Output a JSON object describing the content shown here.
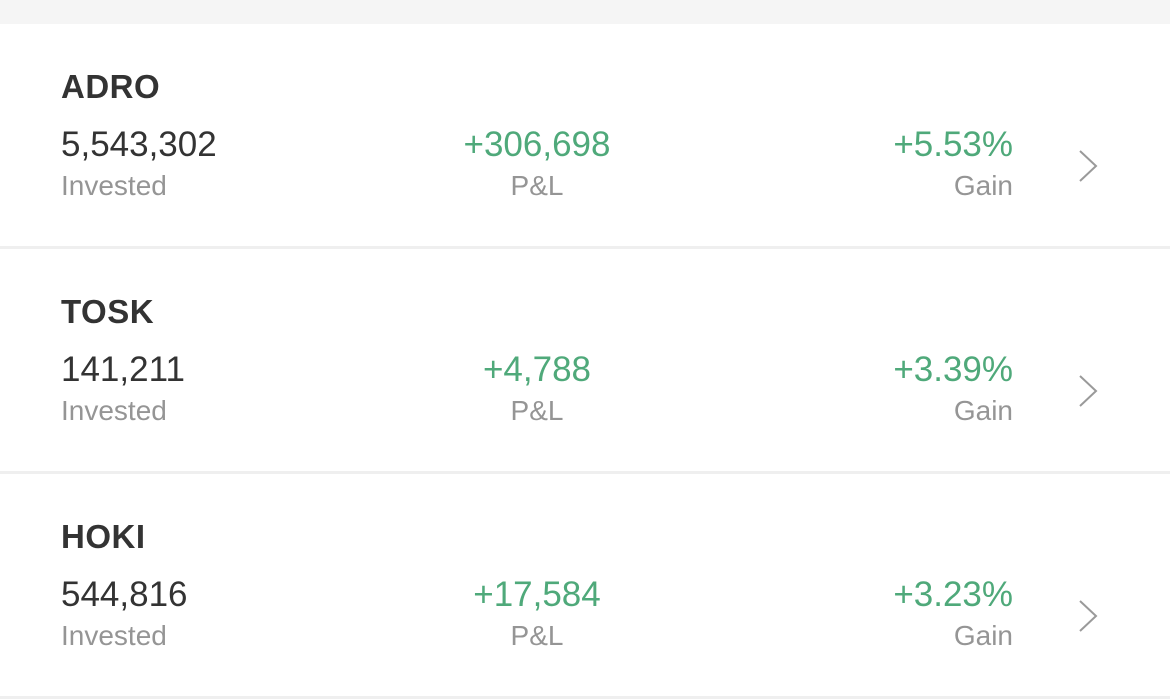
{
  "colors": {
    "positive": "#4fa97a",
    "text": "#333333",
    "label": "#959595"
  },
  "labels": {
    "invested": "Invested",
    "pnl": "P&L",
    "gain": "Gain"
  },
  "holdings": [
    {
      "ticker": "ADRO",
      "invested": "5,543,302",
      "pnl": "+306,698",
      "gain": "+5.53%"
    },
    {
      "ticker": "TOSK",
      "invested": "141,211",
      "pnl": "+4,788",
      "gain": "+3.39%"
    },
    {
      "ticker": "HOKI",
      "invested": "544,816",
      "pnl": "+17,584",
      "gain": "+3.23%"
    }
  ]
}
